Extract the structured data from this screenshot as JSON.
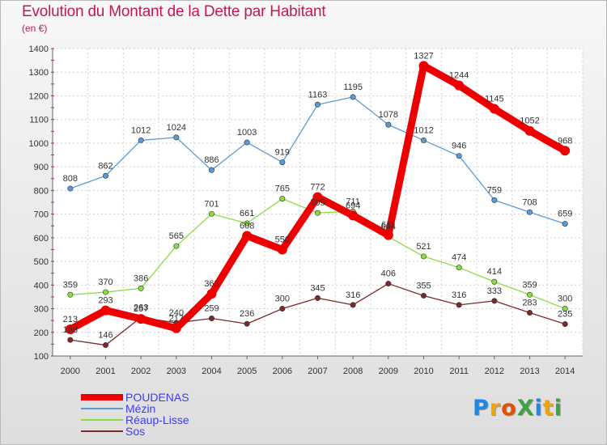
{
  "title": "Evolution du Montant de la Dette par Habitant",
  "subtitle": "(en €)",
  "logo": {
    "text": "ProXiti",
    "colors": [
      "#1e88e5",
      "#f4a300",
      "#e65100",
      "#43a047",
      "#1e88e5",
      "#f4a300",
      "#43a047"
    ]
  },
  "chart_data": {
    "type": "line",
    "x": [
      "2000",
      "2001",
      "2002",
      "2003",
      "2004",
      "2005",
      "2006",
      "2007",
      "2008",
      "2009",
      "2010",
      "2011",
      "2012",
      "2013",
      "2014"
    ],
    "ylim": [
      100,
      1400
    ],
    "yticks": [
      "100",
      "200",
      "300",
      "400",
      "500",
      "600",
      "700",
      "800",
      "900",
      "1000",
      "1100",
      "1200",
      "1300",
      "1400"
    ],
    "grid": true,
    "legend_position": "bottom-left",
    "series": [
      {
        "name": "POUDENAS",
        "color": "#ee0000",
        "values": [
          213,
          293,
          257,
          217,
          363,
          608,
          550,
          772,
          694,
          611,
          1327,
          1244,
          1145,
          1052,
          968
        ],
        "labels": [
          "213",
          "293",
          "257",
          "217",
          "363",
          "608",
          "550",
          "772",
          "694",
          "611",
          "1327",
          "1244",
          "1145",
          "1052",
          "968"
        ]
      },
      {
        "name": "Mézin",
        "color": "#5b9bd5",
        "values": [
          808,
          862,
          1012,
          1024,
          886,
          1003,
          919,
          1163,
          1195,
          1078,
          1012,
          946,
          759,
          708,
          659
        ],
        "labels": [
          "808",
          "862",
          "1012",
          "1024",
          "886",
          "1003",
          "919",
          "1163",
          "1195",
          "1078",
          "1012",
          "946",
          "759",
          "708",
          "659"
        ]
      },
      {
        "name": "Réaup-Lisse",
        "color": "#88dd44",
        "values": [
          359,
          370,
          386,
          565,
          701,
          661,
          765,
          705,
          711,
          604,
          521,
          474,
          414,
          359,
          300
        ],
        "labels": [
          "359",
          "370",
          "386",
          "565",
          "701",
          "661",
          "765",
          "705",
          "711",
          "604",
          "521",
          "474",
          "414",
          "359",
          "300"
        ]
      },
      {
        "name": "Sos",
        "color": "#7b2a2a",
        "values": [
          168,
          146,
          263,
          240,
          259,
          236,
          300,
          345,
          316,
          406,
          355,
          316,
          333,
          283,
          235
        ],
        "labels": [
          "168",
          "146",
          "263",
          "240",
          "259",
          "236",
          "300",
          "345",
          "316",
          "406",
          "355",
          "316",
          "333",
          "283",
          "235"
        ]
      }
    ]
  }
}
